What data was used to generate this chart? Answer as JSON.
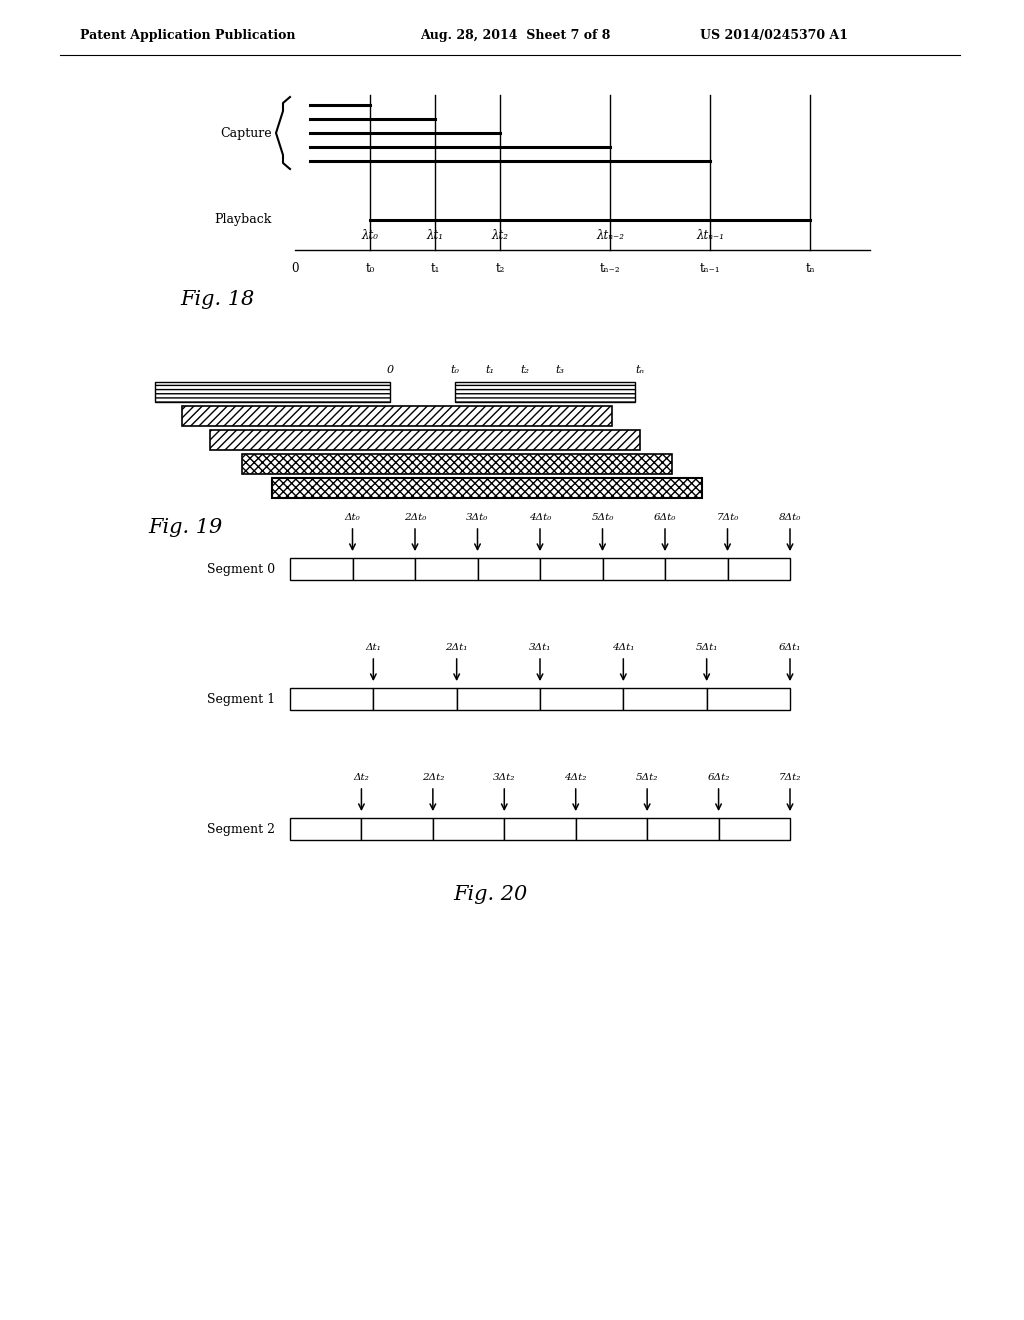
{
  "bg_color": "#ffffff",
  "header_left": "Patent Application Publication",
  "header_mid": "Aug. 28, 2014  Sheet 7 of 8",
  "header_right": "US 2014/0245370 A1",
  "fig18": {
    "label": "Fig. 18",
    "capture_label": "Capture",
    "playback_label": "Playback",
    "time_labels_bottom": [
      "0",
      "t₀",
      "t₁",
      "t₂",
      "tₙ₋₂",
      "tₙ₋₁",
      "tₙ"
    ],
    "lambda_labels": [
      "λt₀",
      "λt₁",
      "λt₂",
      "λtₙ₋₂",
      "λtₙ₋₁"
    ]
  },
  "fig19": {
    "label": "Fig. 19",
    "time_labels": [
      "0",
      "t₀",
      "t₁",
      "t₂",
      "t₃",
      "tₙ"
    ]
  },
  "fig20": {
    "label": "Fig. 20",
    "segments": [
      {
        "name": "Segment 0",
        "arrow_labels": [
          "Δt₀",
          "2Δt₀",
          "3Δt₀",
          "4Δt₀",
          "5Δt₀",
          "6Δt₀",
          "7Δt₀",
          "8Δt₀"
        ],
        "num_cells": 8
      },
      {
        "name": "Segment 1",
        "arrow_labels": [
          "Δt₁",
          "2Δt₁",
          "3Δt₁",
          "4Δt₁",
          "5Δt₁",
          "6Δt₁"
        ],
        "num_cells": 6
      },
      {
        "name": "Segment 2",
        "arrow_labels": [
          "Δt₂",
          "2Δt₂",
          "3Δt₂",
          "4Δt₂",
          "5Δt₂",
          "6Δt₂",
          "7Δt₂"
        ],
        "num_cells": 7
      }
    ]
  }
}
